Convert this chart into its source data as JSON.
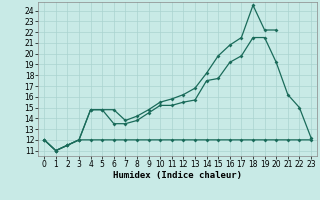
{
  "xlabel": "Humidex (Indice chaleur)",
  "bg_color": "#c8eae6",
  "grid_color": "#aad4d0",
  "line_color": "#1a6b5a",
  "xlim": [
    -0.5,
    23.5
  ],
  "ylim": [
    10.5,
    24.8
  ],
  "xticks": [
    0,
    1,
    2,
    3,
    4,
    5,
    6,
    7,
    8,
    9,
    10,
    11,
    12,
    13,
    14,
    15,
    16,
    17,
    18,
    19,
    20,
    21,
    22,
    23
  ],
  "yticks": [
    11,
    12,
    13,
    14,
    15,
    16,
    17,
    18,
    19,
    20,
    21,
    22,
    23,
    24
  ],
  "series1_x": [
    0,
    1,
    2,
    3,
    4,
    5,
    6,
    7,
    8,
    9,
    10,
    11,
    12,
    13,
    14,
    15,
    16,
    17,
    18,
    19,
    20,
    21,
    22,
    23
  ],
  "series1_y": [
    12,
    11,
    11.5,
    12,
    12,
    12,
    12,
    12,
    12,
    12,
    12,
    12,
    12,
    12,
    12,
    12,
    12,
    12,
    12,
    12,
    12,
    12,
    12,
    12
  ],
  "series2_x": [
    0,
    1,
    2,
    3,
    4,
    5,
    6,
    7,
    8,
    9,
    10,
    11,
    12,
    13,
    14,
    15,
    16,
    17,
    18,
    19,
    20,
    21,
    22,
    23
  ],
  "series2_y": [
    12,
    11,
    11.5,
    12,
    14.8,
    14.8,
    13.5,
    13.5,
    13.8,
    14.5,
    15.2,
    15.2,
    15.5,
    15.7,
    17.5,
    17.7,
    19.2,
    19.8,
    21.5,
    21.5,
    19.2,
    16.2,
    15.0,
    12.2
  ],
  "series3_x": [
    0,
    1,
    2,
    3,
    4,
    5,
    6,
    7,
    8,
    9,
    10,
    11,
    12,
    13,
    14,
    15,
    16,
    17,
    18,
    19,
    20
  ],
  "series3_y": [
    12,
    11,
    11.5,
    12,
    14.8,
    14.8,
    14.8,
    13.8,
    14.2,
    14.8,
    15.5,
    15.8,
    16.2,
    16.8,
    18.2,
    19.8,
    20.8,
    21.5,
    24.5,
    22.2,
    22.2
  ],
  "tick_fontsize": 5.5,
  "xlabel_fontsize": 6.5,
  "marker_size": 2.0,
  "line_width": 0.9
}
